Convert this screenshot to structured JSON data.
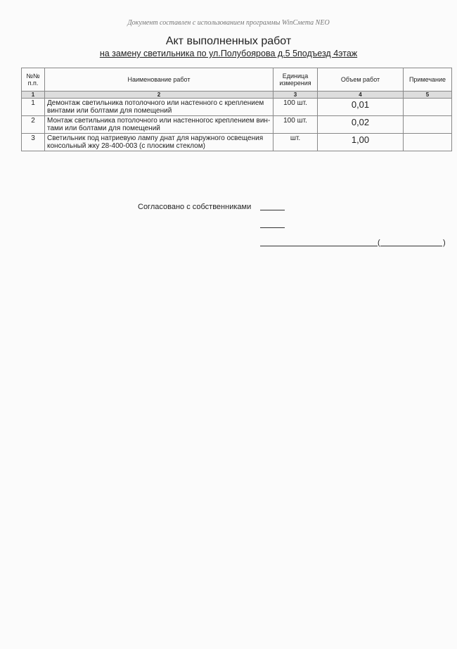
{
  "header_note": "Документ составлен с использованием программы WinСмета NEO",
  "title": "Акт выполненных работ",
  "subtitle": "на замену светильника по ул.Полубоярова д.5 5подъезд 4этаж",
  "table": {
    "headers": [
      "№№ п.п.",
      "Наименование работ",
      "Единица измерения",
      "Объем работ",
      "Примечание"
    ],
    "index_row": [
      "1",
      "2",
      "3",
      "4",
      "5"
    ],
    "rows": [
      {
        "n": "1",
        "name": "Демонтаж светильника потолочного или настенного с креплением винтами или болтами для помещений",
        "unit": "100 шт.",
        "volume": "0,01",
        "note": ""
      },
      {
        "n": "2",
        "name": "Монтаж светильника потолочного или настенногос креплением вин-тами или болтами для помещений",
        "unit": "100 шт.",
        "volume": "0,02",
        "note": ""
      },
      {
        "n": "3",
        "name": "Светильник под натриевую лампу днат для наружного освещения консольный жку 28-400-003 (с плоским стеклом)",
        "unit": "шт.",
        "volume": "1,00",
        "note": ""
      }
    ]
  },
  "signature": {
    "label": "Согласовано с собственниками",
    "open_paren": "(",
    "close_paren": ")"
  }
}
